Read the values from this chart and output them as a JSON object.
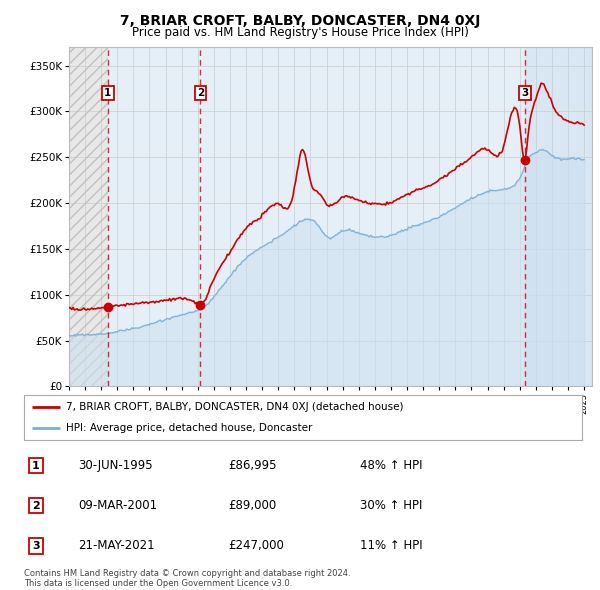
{
  "title": "7, BRIAR CROFT, BALBY, DONCASTER, DN4 0XJ",
  "subtitle": "Price paid vs. HM Land Registry's House Price Index (HPI)",
  "ylabel_ticks": [
    "£0",
    "£50K",
    "£100K",
    "£150K",
    "£200K",
    "£250K",
    "£300K",
    "£350K"
  ],
  "ytick_values": [
    0,
    50000,
    100000,
    150000,
    200000,
    250000,
    300000,
    350000
  ],
  "ylim": [
    0,
    370000
  ],
  "sale_prices": [
    86995,
    89000,
    247000
  ],
  "sale_labels": [
    "1",
    "2",
    "3"
  ],
  "legend_property": "7, BRIAR CROFT, BALBY, DONCASTER, DN4 0XJ (detached house)",
  "legend_hpi": "HPI: Average price, detached house, Doncaster",
  "table_rows": [
    [
      "1",
      "30-JUN-1995",
      "£86,995",
      "48% ↑ HPI"
    ],
    [
      "2",
      "09-MAR-2001",
      "£89,000",
      "30% ↑ HPI"
    ],
    [
      "3",
      "21-MAY-2021",
      "£247,000",
      "11% ↑ HPI"
    ]
  ],
  "footer": "Contains HM Land Registry data © Crown copyright and database right 2024.\nThis data is licensed under the Open Government Licence v3.0.",
  "property_color": "#cc0000",
  "hpi_line_color": "#7aafd4",
  "shade_color": "#cce0f0",
  "background_color": "#ffffff",
  "xmin": 1993.0,
  "xmax": 2025.5,
  "sale_numeric": [
    1995.417,
    2001.167,
    2021.333
  ]
}
